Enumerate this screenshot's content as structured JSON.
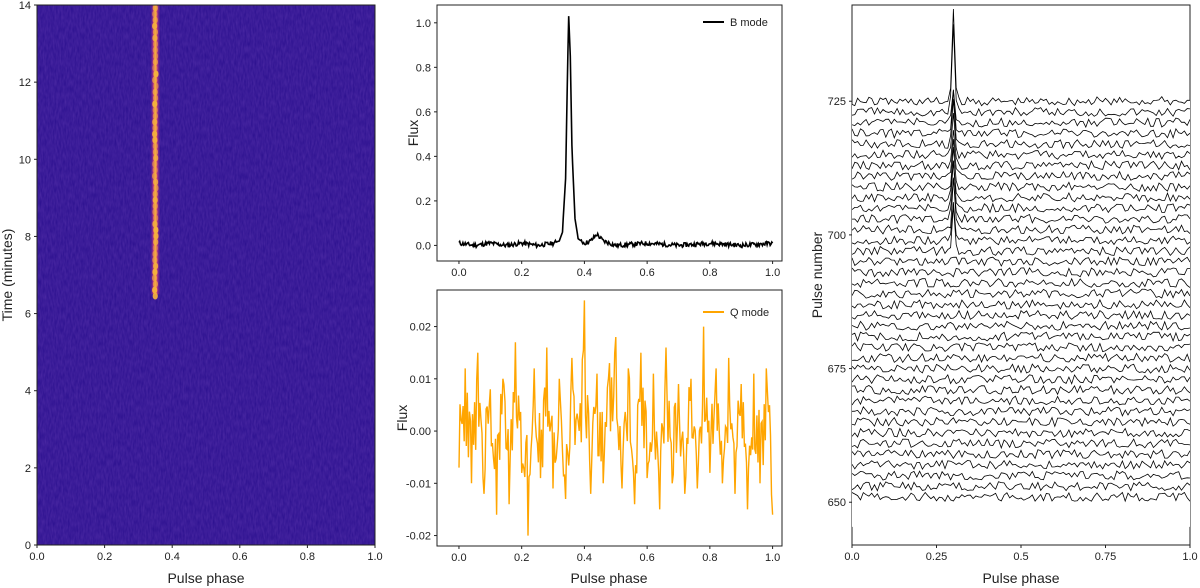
{
  "chart_data": [
    {
      "type": "heatmap",
      "title": "",
      "xlabel": "Pulse phase",
      "ylabel": "Time (minutes)",
      "xlim": [
        0,
        1
      ],
      "ylim": [
        0,
        14
      ],
      "xticks": [
        "0.0",
        "0.2",
        "0.4",
        "0.6",
        "0.8",
        "1.0"
      ],
      "yticks": [
        "0",
        "2",
        "4",
        "6",
        "8",
        "10",
        "12",
        "14"
      ],
      "background_color": "#2a0f8e",
      "pulse_color": "#f5b13d",
      "pulse_phase": 0.35,
      "pulse_start_minutes": 6.5,
      "pulse_end_minutes": 14
    },
    {
      "type": "line",
      "xlabel": "",
      "ylabel": "Flux",
      "xlim": [
        -0.07,
        1.03
      ],
      "ylim": [
        -0.07,
        1.08
      ],
      "xticks": [
        "0.0",
        "0.2",
        "0.4",
        "0.6",
        "0.8",
        "1.0"
      ],
      "yticks": [
        "0.0",
        "0.2",
        "0.4",
        "0.6",
        "0.8",
        "1.0"
      ],
      "legend": "top-right",
      "series": [
        {
          "name": "B mode",
          "color": "#000000",
          "x": [
            0.0,
            0.05,
            0.1,
            0.15,
            0.2,
            0.25,
            0.3,
            0.32,
            0.33,
            0.34,
            0.345,
            0.35,
            0.355,
            0.36,
            0.37,
            0.38,
            0.4,
            0.42,
            0.44,
            0.46,
            0.5,
            0.6,
            0.7,
            0.8,
            0.9,
            1.0
          ],
          "values": [
            0.01,
            0.0,
            0.01,
            0.0,
            0.01,
            0.0,
            0.01,
            0.02,
            0.06,
            0.3,
            0.7,
            1.03,
            0.85,
            0.45,
            0.12,
            0.03,
            0.01,
            0.02,
            0.05,
            0.02,
            0.0,
            0.01,
            0.0,
            0.01,
            0.0,
            0.01
          ]
        }
      ]
    },
    {
      "type": "line",
      "xlabel": "Pulse phase",
      "ylabel": "Flux",
      "xlim": [
        -0.07,
        1.03
      ],
      "ylim": [
        -0.022,
        0.027
      ],
      "xticks": [
        "0.0",
        "0.2",
        "0.4",
        "0.6",
        "0.8",
        "1.0"
      ],
      "yticks": [
        "-0.02",
        "-0.01",
        "0.00",
        "0.01",
        "0.02"
      ],
      "legend": "top-right",
      "series": [
        {
          "name": "Q mode",
          "color": "#ffa500",
          "x": [
            0.0,
            0.02,
            0.04,
            0.06,
            0.08,
            0.1,
            0.12,
            0.14,
            0.16,
            0.18,
            0.2,
            0.22,
            0.24,
            0.26,
            0.28,
            0.3,
            0.32,
            0.34,
            0.36,
            0.38,
            0.4,
            0.42,
            0.44,
            0.46,
            0.48,
            0.5,
            0.52,
            0.54,
            0.56,
            0.58,
            0.6,
            0.62,
            0.64,
            0.66,
            0.68,
            0.7,
            0.72,
            0.74,
            0.76,
            0.78,
            0.8,
            0.82,
            0.84,
            0.86,
            0.88,
            0.9,
            0.92,
            0.94,
            0.96,
            0.98,
            1.0
          ],
          "values": [
            -0.007,
            0.012,
            -0.01,
            0.015,
            -0.012,
            0.008,
            -0.016,
            0.01,
            -0.014,
            0.017,
            -0.008,
            -0.02,
            0.012,
            -0.009,
            0.016,
            -0.011,
            0.01,
            -0.013,
            0.014,
            0.002,
            0.025,
            -0.012,
            0.011,
            -0.01,
            0.013,
            0.018,
            -0.011,
            0.012,
            -0.014,
            0.015,
            -0.009,
            0.011,
            -0.015,
            0.016,
            -0.01,
            0.009,
            -0.012,
            0.01,
            -0.011,
            0.02,
            -0.008,
            0.012,
            -0.01,
            0.014,
            -0.012,
            0.009,
            -0.015,
            0.011,
            -0.01,
            0.012,
            -0.016
          ]
        }
      ]
    },
    {
      "type": "line",
      "title": "",
      "xlabel": "Pulse phase",
      "ylabel": "Pulse number",
      "xlim": [
        0,
        1
      ],
      "ylim": [
        642,
        743
      ],
      "xticks": [
        "0.0",
        "0.25",
        "0.5",
        "0.75",
        "1.0"
      ],
      "yticks": [
        "650",
        "675",
        "700",
        "725"
      ],
      "pulse_start": 650,
      "pulse_end": 725,
      "pulse_step": 2,
      "line_color": "#000000",
      "pulse_peak_phase": 0.3,
      "on_pulse_from": 697
    }
  ]
}
